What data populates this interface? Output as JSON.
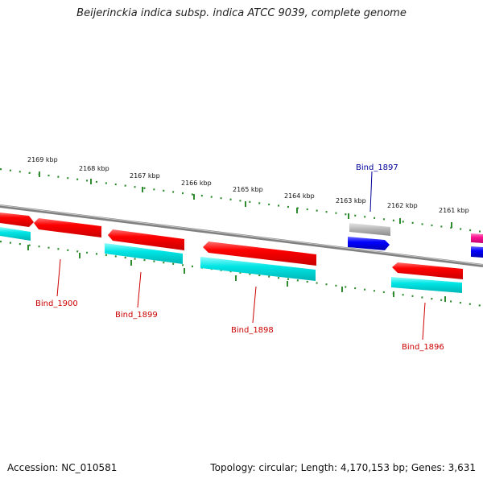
{
  "title": "Beijerinckia indica subsp. indica ATCC 9039, complete genome",
  "footer": {
    "accession": "Accession: NC_010581",
    "summary": "Topology: circular; Length: 4,170,153 bp; Genes: 3,631"
  },
  "colors": {
    "backbone": "#808080",
    "tick": "#2e8b2e",
    "cds": "#ff0000",
    "cds_rna": "#00e5e5",
    "other_gene": "#b0b0b0",
    "other_cds": "#0000ff",
    "edge_gene": "#ff1493",
    "label_red": "#cc0000",
    "label_blue": "#000099"
  },
  "scale": {
    "kbp_labels": [
      "2169 kbp",
      "2168 kbp",
      "2167 kbp",
      "2166 kbp",
      "2165 kbp",
      "2164 kbp",
      "2163 kbp",
      "2162 kbp",
      "2161 kbp"
    ]
  },
  "genes": [
    {
      "label": "Bind_1900",
      "color": "label_red"
    },
    {
      "label": "Bind_1899",
      "color": "label_red"
    },
    {
      "label": "Bind_1898",
      "color": "label_red"
    },
    {
      "label": "Bind_1897",
      "color": "label_blue"
    },
    {
      "label": "Bind_1896",
      "color": "label_red"
    }
  ]
}
